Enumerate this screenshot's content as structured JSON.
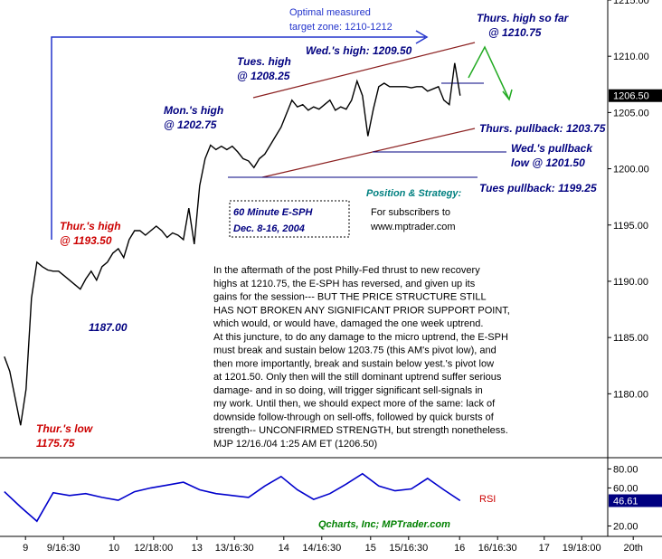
{
  "chart_data": [
    {
      "type": "line",
      "title": [
        "60 Minute E-SPH",
        "Dec. 8-16, 2004"
      ],
      "x": [
        0,
        1,
        2,
        3,
        4,
        5,
        6,
        7,
        8,
        9,
        10,
        11,
        12,
        13,
        14,
        15,
        16,
        17,
        18,
        19,
        20,
        21,
        22,
        23,
        24,
        25,
        26,
        27,
        28,
        29,
        30,
        31,
        32,
        33,
        34,
        35,
        36,
        37,
        38,
        39,
        40,
        41,
        42,
        43,
        44,
        45,
        46,
        47,
        48,
        49,
        50,
        51,
        52,
        53,
        54,
        55,
        56,
        57,
        58,
        59,
        60,
        61,
        62,
        63,
        64,
        65,
        66,
        67,
        68,
        69,
        70,
        71,
        72,
        73,
        74,
        75,
        76,
        77,
        78,
        79,
        80,
        81,
        82,
        83,
        84
      ],
      "values": [
        1183.3,
        1182.0,
        1179.6,
        1177.2,
        1180.4,
        1188.5,
        1191.7,
        1191.3,
        1191.0,
        1190.9,
        1190.9,
        1190.5,
        1190.1,
        1189.7,
        1189.3,
        1190.2,
        1190.9,
        1190.1,
        1191.3,
        1191.7,
        1192.5,
        1192.9,
        1192.1,
        1193.7,
        1194.5,
        1194.5,
        1194.1,
        1194.5,
        1194.9,
        1194.5,
        1193.9,
        1194.3,
        1194.1,
        1193.7,
        1196.5,
        1193.3,
        1198.5,
        1200.9,
        1202.1,
        1201.7,
        1202.0,
        1201.7,
        1202.0,
        1201.5,
        1200.9,
        1200.7,
        1200.1,
        1200.9,
        1201.3,
        1202.1,
        1202.9,
        1203.7,
        1204.9,
        1206.1,
        1205.5,
        1205.7,
        1205.2,
        1205.5,
        1205.3,
        1205.7,
        1206.1,
        1205.2,
        1205.5,
        1205.3,
        1206.1,
        1207.8,
        1206.5,
        1202.9,
        1205.3,
        1207.3,
        1207.6,
        1207.3,
        1207.3,
        1207.3,
        1207.3,
        1207.2,
        1207.3,
        1207.3,
        1206.9,
        1207.1,
        1207.3,
        1206.1,
        1205.7,
        1209.4,
        1206.5
      ],
      "color": "#000000",
      "xlim": [
        -0.8,
        121.2
      ],
      "ylim": [
        1174.4,
        1215
      ],
      "yticks": [
        {
          "value": 1180,
          "label": "1180.00"
        },
        {
          "value": 1185,
          "label": "1185.00"
        },
        {
          "value": 1190,
          "label": "1190.00"
        },
        {
          "value": 1195,
          "label": "1195.00"
        },
        {
          "value": 1200,
          "label": "1200.00"
        },
        {
          "value": 1205,
          "label": "1205.00"
        },
        {
          "value": 1210,
          "label": "1210.00"
        },
        {
          "value": 1215,
          "label": "1215.00"
        }
      ],
      "price_marker": {
        "value": 1206.5,
        "label": "1206.50"
      },
      "annotations": [
        {
          "lines": [
            "Optimal measured",
            "target zone: 1210-1212"
          ],
          "color": "#2233cc"
        },
        {
          "lines": [
            "Thurs. high so far",
            "@ 1210.75"
          ],
          "color": "#000080"
        },
        {
          "lines": [
            "Wed.'s high: 1209.50"
          ],
          "color": "#000080"
        },
        {
          "lines": [
            "Tues. high",
            "@ 1208.25"
          ],
          "color": "#000080"
        },
        {
          "lines": [
            "Mon.'s high",
            "@ 1202.75"
          ],
          "color": "#000080"
        },
        {
          "lines": [
            "Thurs. pullback: 1203.75"
          ],
          "color": "#000080"
        },
        {
          "lines": [
            "Wed.'s pullback",
            "low @ 1201.50"
          ],
          "color": "#000080"
        },
        {
          "lines": [
            "Tues pullback: 1199.25"
          ],
          "color": "#000080"
        },
        {
          "lines": [
            "Thur.'s high",
            "@ 1193.50"
          ],
          "color": "#cc0000"
        },
        {
          "lines": [
            "1187.00"
          ],
          "color": "#000080"
        },
        {
          "lines": [
            "Thur.'s low",
            "1175.75"
          ],
          "color": "#cc0000"
        }
      ],
      "strategy": {
        "heading": "Position & Strategy:",
        "lines": [
          "For subscribers to",
          "www.mptrader.com"
        ]
      },
      "commentary": [
        "In the aftermath of the post Philly-Fed thrust to new recovery",
        "highs at 1210.75, the E-SPH has reversed, and given up its",
        "gains for the session--- BUT THE PRICE STRUCTURE STILL",
        "HAS NOT BROKEN ANY SIGNIFICANT PRIOR SUPPORT POINT,",
        "which would, or would have, damaged the one week uptrend.",
        "At this juncture, to do any damage to the micro uptrend, the E-SPH",
        "must break and sustain below 1203.75 (this AM's pivot low), and",
        "then more importantly, break and sustain below yest.'s pivot low",
        "at 1201.50. Only then will the still dominant uptrend suffer serious",
        "damage- and in so doing, will trigger significant sell-signals in",
        "my work. Until then, we should expect more of the same: lack of",
        "downside follow-through on sell-offs, followed by quick bursts of",
        "strength-- UNCONFIRMED STRENGTH, but strength nonetheless.",
        "MJP 12/16./04  1:25 AM  ET (1206.50)"
      ]
    },
    {
      "type": "line",
      "title": "RSI",
      "source": "Qcharts, Inc; MPTrader.com",
      "x": [
        0,
        3,
        6,
        9,
        12,
        15,
        18,
        21,
        24,
        27,
        30,
        33,
        36,
        39,
        42,
        45,
        48,
        51,
        54,
        57,
        60,
        63,
        66,
        69,
        72,
        75,
        78,
        81,
        84
      ],
      "values": [
        56,
        40,
        25,
        55,
        52,
        54,
        50,
        47,
        56,
        60,
        63,
        66,
        58,
        54,
        52,
        50,
        62,
        72,
        58,
        48,
        54,
        64,
        75,
        62,
        57,
        59,
        70,
        58,
        46.61
      ],
      "color": "#0000cc",
      "xlim": [
        -0.8,
        121.2
      ],
      "ylim": [
        10,
        88
      ],
      "yticks": [
        {
          "value": 20,
          "label": "20.00"
        },
        {
          "value": 60,
          "label": "60.00"
        },
        {
          "value": 80,
          "label": "80.00"
        }
      ],
      "rsi_marker": {
        "value": 46.61,
        "label": "46.61"
      },
      "xticks": [
        {
          "value": 3.9,
          "label": "9"
        },
        {
          "value": 10.9,
          "label": "9/16:30"
        },
        {
          "value": 20.2,
          "label": "10"
        },
        {
          "value": 27.5,
          "label": "12/18:00"
        },
        {
          "value": 35.5,
          "label": "13"
        },
        {
          "value": 42.4,
          "label": "13/16:30"
        },
        {
          "value": 51.5,
          "label": "14"
        },
        {
          "value": 58.5,
          "label": "14/16:30"
        },
        {
          "value": 67.5,
          "label": "15"
        },
        {
          "value": 74.5,
          "label": "15/16:30"
        },
        {
          "value": 83.9,
          "label": "16"
        },
        {
          "value": 90.9,
          "label": "16/16:30"
        },
        {
          "value": 99.5,
          "label": "17"
        },
        {
          "value": 106.4,
          "label": "19/18:00"
        },
        {
          "value": 115.9,
          "label": "20th"
        }
      ]
    }
  ]
}
